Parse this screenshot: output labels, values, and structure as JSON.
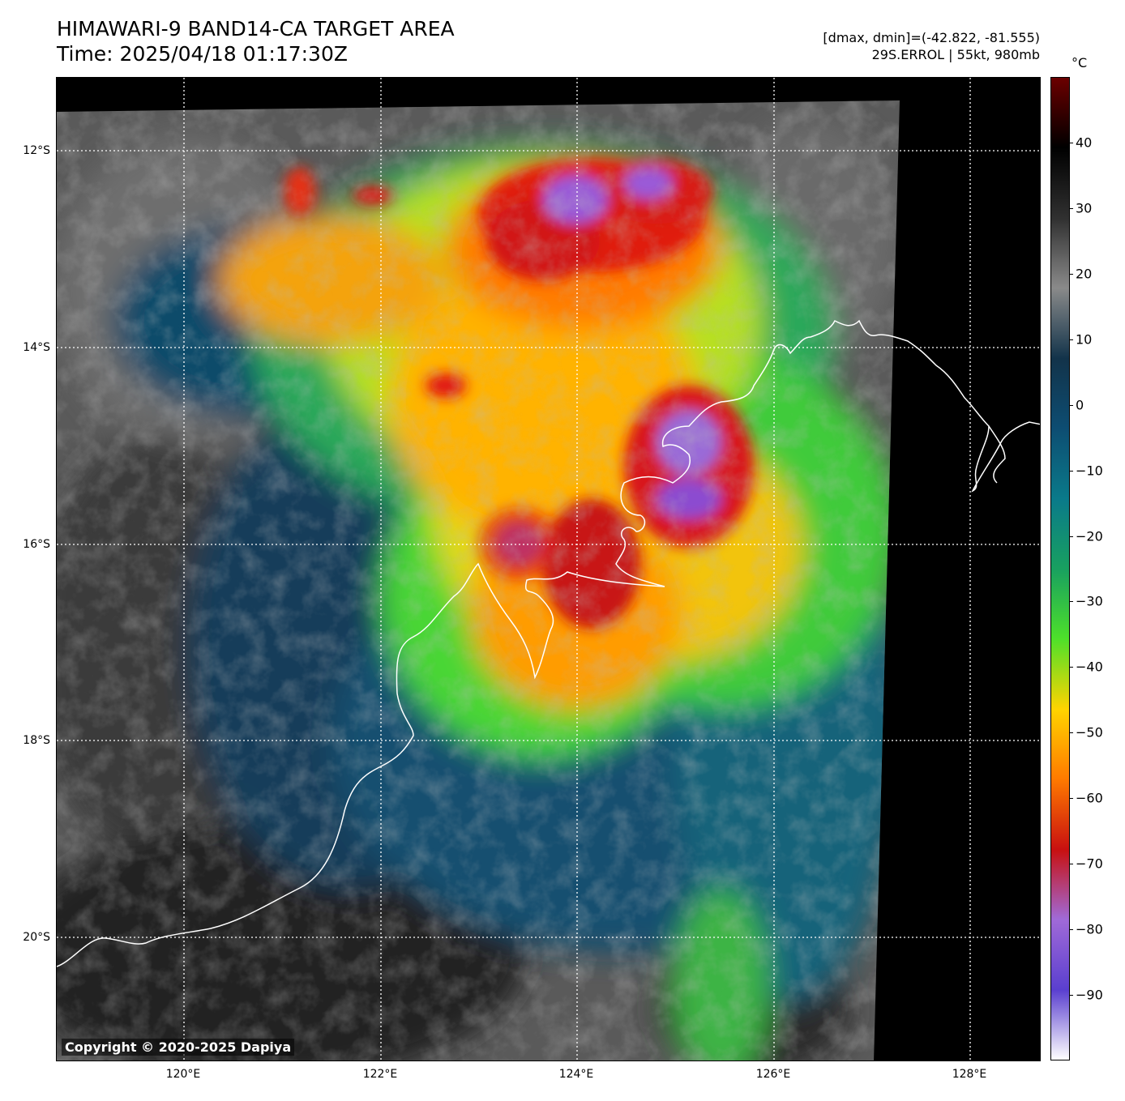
{
  "header": {
    "title_line1": "HIMAWARI-9 BAND14-CA TARGET AREA",
    "title_line2": "Time: 2025/04/18 01:17:30Z",
    "range_text": "[dmax, dmin]=(-42.822, -81.555)",
    "storm_text": "29S.ERROL | 55kt, 980mb"
  },
  "map": {
    "lat_labels": [
      "12°S",
      "14°S",
      "16°S",
      "18°S",
      "20°S"
    ],
    "lon_labels": [
      "120°E",
      "122°E",
      "124°E",
      "126°E",
      "128°E"
    ],
    "copyright": "Copyright © 2020-2025 Dapiya"
  },
  "colorbar": {
    "unit": "°C",
    "ticks": [
      "40",
      "30",
      "20",
      "10",
      "0",
      "−10",
      "−20",
      "−30",
      "−40",
      "−50",
      "−60",
      "−70",
      "−80",
      "−90"
    ],
    "range": [
      -100,
      50
    ],
    "colors": [
      "#ffffff",
      "#5a3fcf",
      "#a06ad8",
      "#c81010",
      "#ff7a00",
      "#ffd400",
      "#4de02a",
      "#18a060",
      "#0a7a8a",
      "#0d4d72",
      "#12334a",
      "#8a8a8a",
      "#303030",
      "#000000",
      "#6b0000"
    ]
  }
}
